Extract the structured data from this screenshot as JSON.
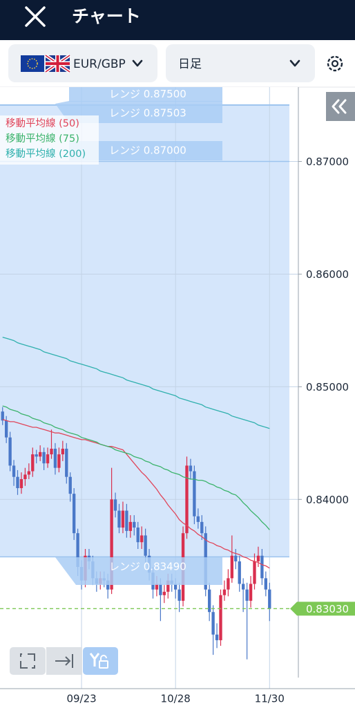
{
  "header": {
    "title": "チャート"
  },
  "toolbar": {
    "pair": "EUR/GBP",
    "timeframe": "日足"
  },
  "chart_data": {
    "type": "candlestick",
    "up_color": "#d9304f",
    "down_color": "#4a78c8",
    "categories": [
      null,
      null,
      null,
      null,
      null,
      null,
      null,
      null,
      null,
      null,
      null,
      null,
      null,
      null,
      null,
      null,
      null,
      null,
      null,
      null,
      null,
      "09/23",
      null,
      null,
      null,
      null,
      null,
      null,
      null,
      null,
      null,
      null,
      null,
      null,
      null,
      null,
      null,
      null,
      null,
      null,
      null,
      null,
      null,
      null,
      null,
      null,
      "10/28",
      null,
      null,
      null,
      null,
      null,
      null,
      null,
      null,
      null,
      null,
      null,
      null,
      null,
      null,
      null,
      null,
      null,
      null,
      null,
      null,
      null,
      null,
      null,
      null,
      "11/30"
    ],
    "open": [
      0.8478,
      0.847,
      0.8455,
      0.843,
      0.842,
      0.841,
      0.8418,
      0.8422,
      0.8425,
      0.844,
      0.8438,
      0.8442,
      0.8432,
      0.844,
      0.8445,
      0.8428,
      0.844,
      0.8445,
      0.842,
      0.8405,
      0.837,
      0.834,
      0.8328,
      0.835,
      0.8345,
      0.833,
      0.8325,
      0.833,
      0.8328,
      0.832,
      0.84,
      0.839,
      0.8375,
      0.839,
      0.8372,
      0.838,
      0.8375,
      0.8362,
      0.8368,
      0.835,
      0.8335,
      0.832,
      0.8325,
      0.8315,
      0.8318,
      0.8328,
      0.8325,
      0.832,
      0.831,
      0.837,
      0.843,
      0.8425,
      0.8385,
      0.838,
      0.837,
      0.832,
      0.83,
      0.828,
      0.8275,
      0.8315,
      0.832,
      0.833,
      0.835,
      0.8345,
      0.8325,
      0.832,
      0.831,
      0.8325,
      0.8345,
      0.835,
      0.833,
      0.832
    ],
    "high": [
      0.8482,
      0.8474,
      0.846,
      0.8435,
      0.8426,
      0.8424,
      0.8428,
      0.8432,
      0.8446,
      0.8444,
      0.8448,
      0.8446,
      0.8446,
      0.8462,
      0.845,
      0.8446,
      0.8452,
      0.845,
      0.8424,
      0.841,
      0.8374,
      0.8346,
      0.8356,
      0.8356,
      0.835,
      0.8336,
      0.8336,
      0.8336,
      0.8334,
      0.8428,
      0.8406,
      0.8396,
      0.8398,
      0.8396,
      0.8386,
      0.8386,
      0.838,
      0.8376,
      0.8374,
      0.8356,
      0.834,
      0.8332,
      0.833,
      0.8324,
      0.8334,
      0.8334,
      0.833,
      0.8326,
      0.8376,
      0.8438,
      0.8436,
      0.843,
      0.8392,
      0.8386,
      0.8376,
      0.8326,
      0.8306,
      0.829,
      0.832,
      0.8328,
      0.8338,
      0.8368,
      0.8356,
      0.835,
      0.833,
      0.8326,
      0.8332,
      0.8352,
      0.8358,
      0.8356,
      0.8336,
      0.8326
    ],
    "low": [
      0.8466,
      0.845,
      0.8425,
      0.8412,
      0.8404,
      0.8405,
      0.8412,
      0.8418,
      0.842,
      0.8432,
      0.8434,
      0.8426,
      0.8428,
      0.8436,
      0.8422,
      0.8424,
      0.8434,
      0.8414,
      0.8398,
      0.8364,
      0.8332,
      0.832,
      0.8322,
      0.8338,
      0.8324,
      0.8318,
      0.832,
      0.8322,
      0.8312,
      0.8316,
      0.8384,
      0.837,
      0.837,
      0.8366,
      0.8366,
      0.8368,
      0.8356,
      0.8356,
      0.8344,
      0.8328,
      0.8312,
      0.8314,
      0.8292,
      0.8308,
      0.8312,
      0.8318,
      0.8312,
      0.83,
      0.8305,
      0.8365,
      0.8418,
      0.8378,
      0.8374,
      0.8364,
      0.8314,
      0.8292,
      0.8262,
      0.8268,
      0.827,
      0.831,
      0.8314,
      0.8326,
      0.8338,
      0.8318,
      0.83,
      0.8258,
      0.8304,
      0.832,
      0.834,
      0.8324,
      0.8314,
      0.8292
    ],
    "close": [
      0.847,
      0.8455,
      0.843,
      0.842,
      0.841,
      0.8418,
      0.8422,
      0.8425,
      0.844,
      0.8438,
      0.8442,
      0.8432,
      0.844,
      0.8445,
      0.8428,
      0.844,
      0.8445,
      0.842,
      0.8405,
      0.837,
      0.834,
      0.8328,
      0.835,
      0.8345,
      0.833,
      0.8325,
      0.833,
      0.8328,
      0.832,
      0.84,
      0.839,
      0.8375,
      0.839,
      0.8372,
      0.838,
      0.8375,
      0.8362,
      0.8368,
      0.835,
      0.8335,
      0.832,
      0.8325,
      0.8315,
      0.8318,
      0.8328,
      0.8325,
      0.832,
      0.831,
      0.837,
      0.843,
      0.8425,
      0.8385,
      0.838,
      0.837,
      0.832,
      0.83,
      0.828,
      0.8275,
      0.8315,
      0.832,
      0.833,
      0.835,
      0.8345,
      0.8325,
      0.832,
      0.831,
      0.8325,
      0.8345,
      0.835,
      0.833,
      0.832,
      0.8303
    ],
    "series": [
      {
        "name": "移動平均線 (50)",
        "color": "#e0455a",
        "values": [
          0.8471,
          0.847,
          0.8469,
          0.8469,
          0.8468,
          0.8467,
          0.8466,
          0.8465,
          0.8464,
          0.8464,
          0.8463,
          0.8462,
          0.8461,
          0.846,
          0.8459,
          0.8459,
          0.8458,
          0.8457,
          0.8456,
          0.8455,
          0.8454,
          0.8453,
          0.8453,
          0.8452,
          0.8451,
          0.845,
          0.8449,
          0.8448,
          0.8447,
          0.8447,
          0.8446,
          0.8445,
          0.8444,
          0.844,
          0.8436,
          0.8432,
          0.8428,
          0.8424,
          0.8421,
          0.8417,
          0.8413,
          0.8409,
          0.8404,
          0.84,
          0.8395,
          0.8391,
          0.8387,
          0.8382,
          0.8379,
          0.8377,
          0.8374,
          0.8372,
          0.8369,
          0.8367,
          0.8364,
          0.8362,
          0.8361,
          0.8359,
          0.8358,
          0.8356,
          0.8355,
          0.8353,
          0.8352,
          0.8351,
          0.8349,
          0.8348,
          0.8346,
          0.8345,
          0.8344,
          0.8342,
          0.8341,
          0.8339
        ]
      },
      {
        "name": "移動平均線 (75)",
        "color": "#3bb36b",
        "values": [
          0.8483,
          0.8482,
          0.848,
          0.8479,
          0.8478,
          0.8476,
          0.8475,
          0.8474,
          0.8472,
          0.8471,
          0.847,
          0.8468,
          0.8467,
          0.8466,
          0.8464,
          0.8463,
          0.8462,
          0.846,
          0.8459,
          0.8458,
          0.8457,
          0.8455,
          0.8454,
          0.8453,
          0.8452,
          0.8451,
          0.8449,
          0.8448,
          0.8447,
          0.8446,
          0.8444,
          0.8443,
          0.8442,
          0.8441,
          0.844,
          0.8438,
          0.8437,
          0.8436,
          0.8434,
          0.8433,
          0.8431,
          0.843,
          0.8429,
          0.8427,
          0.8426,
          0.8424,
          0.8423,
          0.8422,
          0.842,
          0.8419,
          0.8418,
          0.8418,
          0.8417,
          0.8417,
          0.8416,
          0.8414,
          0.8413,
          0.8411,
          0.841,
          0.8408,
          0.8407,
          0.8405,
          0.8404,
          0.8401,
          0.8397,
          0.8394,
          0.839,
          0.8387,
          0.8384,
          0.838,
          0.8377,
          0.8373
        ]
      },
      {
        "name": "移動平均線 (200)",
        "color": "#2fb0ad",
        "values": [
          0.8544,
          0.8543,
          0.8542,
          0.8541,
          0.8539,
          0.8538,
          0.8537,
          0.8536,
          0.8535,
          0.8534,
          0.8533,
          0.8531,
          0.853,
          0.8529,
          0.8528,
          0.8527,
          0.8526,
          0.8525,
          0.8523,
          0.8522,
          0.8521,
          0.852,
          0.8519,
          0.8518,
          0.8517,
          0.8516,
          0.8514,
          0.8513,
          0.8512,
          0.8511,
          0.851,
          0.8509,
          0.8508,
          0.8506,
          0.8505,
          0.8504,
          0.8503,
          0.8502,
          0.8501,
          0.85,
          0.8498,
          0.8497,
          0.8496,
          0.8495,
          0.8494,
          0.8493,
          0.8492,
          0.849,
          0.8489,
          0.8488,
          0.8487,
          0.8486,
          0.8485,
          0.8484,
          0.8482,
          0.8481,
          0.848,
          0.8479,
          0.8478,
          0.8477,
          0.8476,
          0.8474,
          0.8473,
          0.8472,
          0.8471,
          0.847,
          0.8469,
          0.8468,
          0.8466,
          0.8465,
          0.8464,
          0.8463
        ]
      }
    ],
    "ranges": [
      {
        "label": "レンジ 0.87500",
        "value": 0.875
      },
      {
        "label": "レンジ 0.87503",
        "value": 0.87503
      },
      {
        "label": "レンジ 0.87000",
        "value": 0.87
      },
      {
        "label": "レンジ 0.83490",
        "value": 0.8349
      }
    ],
    "current_price": {
      "value": 0.8303,
      "label": "0.83030"
    },
    "ylim": [
      0.8232,
      0.8766
    ],
    "yticks": [
      {
        "value": 0.84,
        "label": "0.84000"
      },
      {
        "value": 0.85,
        "label": "0.85000"
      },
      {
        "value": 0.86,
        "label": "0.86000"
      },
      {
        "value": 0.87,
        "label": "0.87000"
      }
    ],
    "grid": true
  }
}
